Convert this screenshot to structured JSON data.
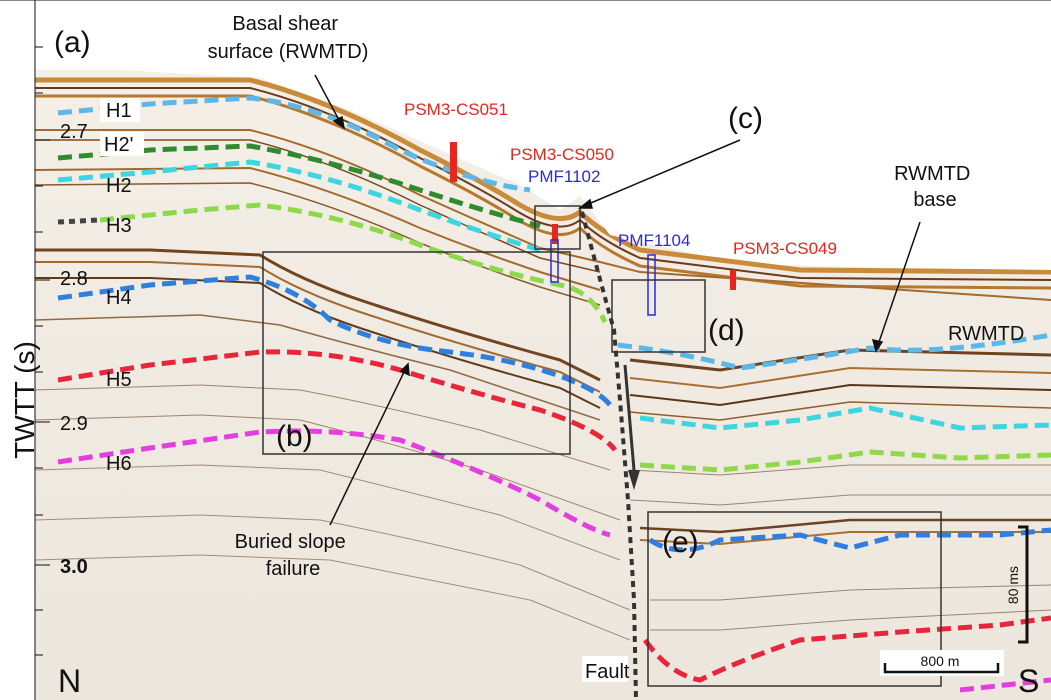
{
  "figure": {
    "panel_label": "(a)",
    "y_axis_label": "TWTT (s)",
    "y_ticks": [
      "2.7",
      "2.8",
      "2.9",
      "3.0"
    ],
    "orientation": {
      "left": "N",
      "right": "S"
    }
  },
  "horizons": [
    {
      "name": "H1",
      "color": "#5bb8e8"
    },
    {
      "name": "H2'",
      "color": "#2e8b2e"
    },
    {
      "name": "H2",
      "color": "#3dd6e0"
    },
    {
      "name": "H3",
      "color": "#8ed94a"
    },
    {
      "name": "H4",
      "color": "#2f7fe0"
    },
    {
      "name": "H5",
      "color": "#e8253a"
    },
    {
      "name": "H6",
      "color": "#e43de0"
    }
  ],
  "annotations": {
    "basal_shear": "Basal shear\nsurface (RWMTD)",
    "rwmtd_base": "RWMTD\nbase",
    "rwmtd": "RWMTD",
    "buried_slope": "Buried slope\nfailure",
    "fault": "Fault"
  },
  "boxes": {
    "b": "(b)",
    "c": "(c)",
    "d": "(d)",
    "e": "(e)"
  },
  "cores": [
    {
      "id": "PSM3-CS051",
      "color": "#e8251f"
    },
    {
      "id": "PSM3-CS050",
      "color": "#e8251f"
    },
    {
      "id": "PMF1102",
      "color": "#2b2bdc"
    },
    {
      "id": "PMF1104",
      "color": "#2b2bdc"
    },
    {
      "id": "PSM3-CS049",
      "color": "#e8251f"
    }
  ],
  "scales": {
    "vertical": "80 ms",
    "horizontal": "800 m"
  }
}
